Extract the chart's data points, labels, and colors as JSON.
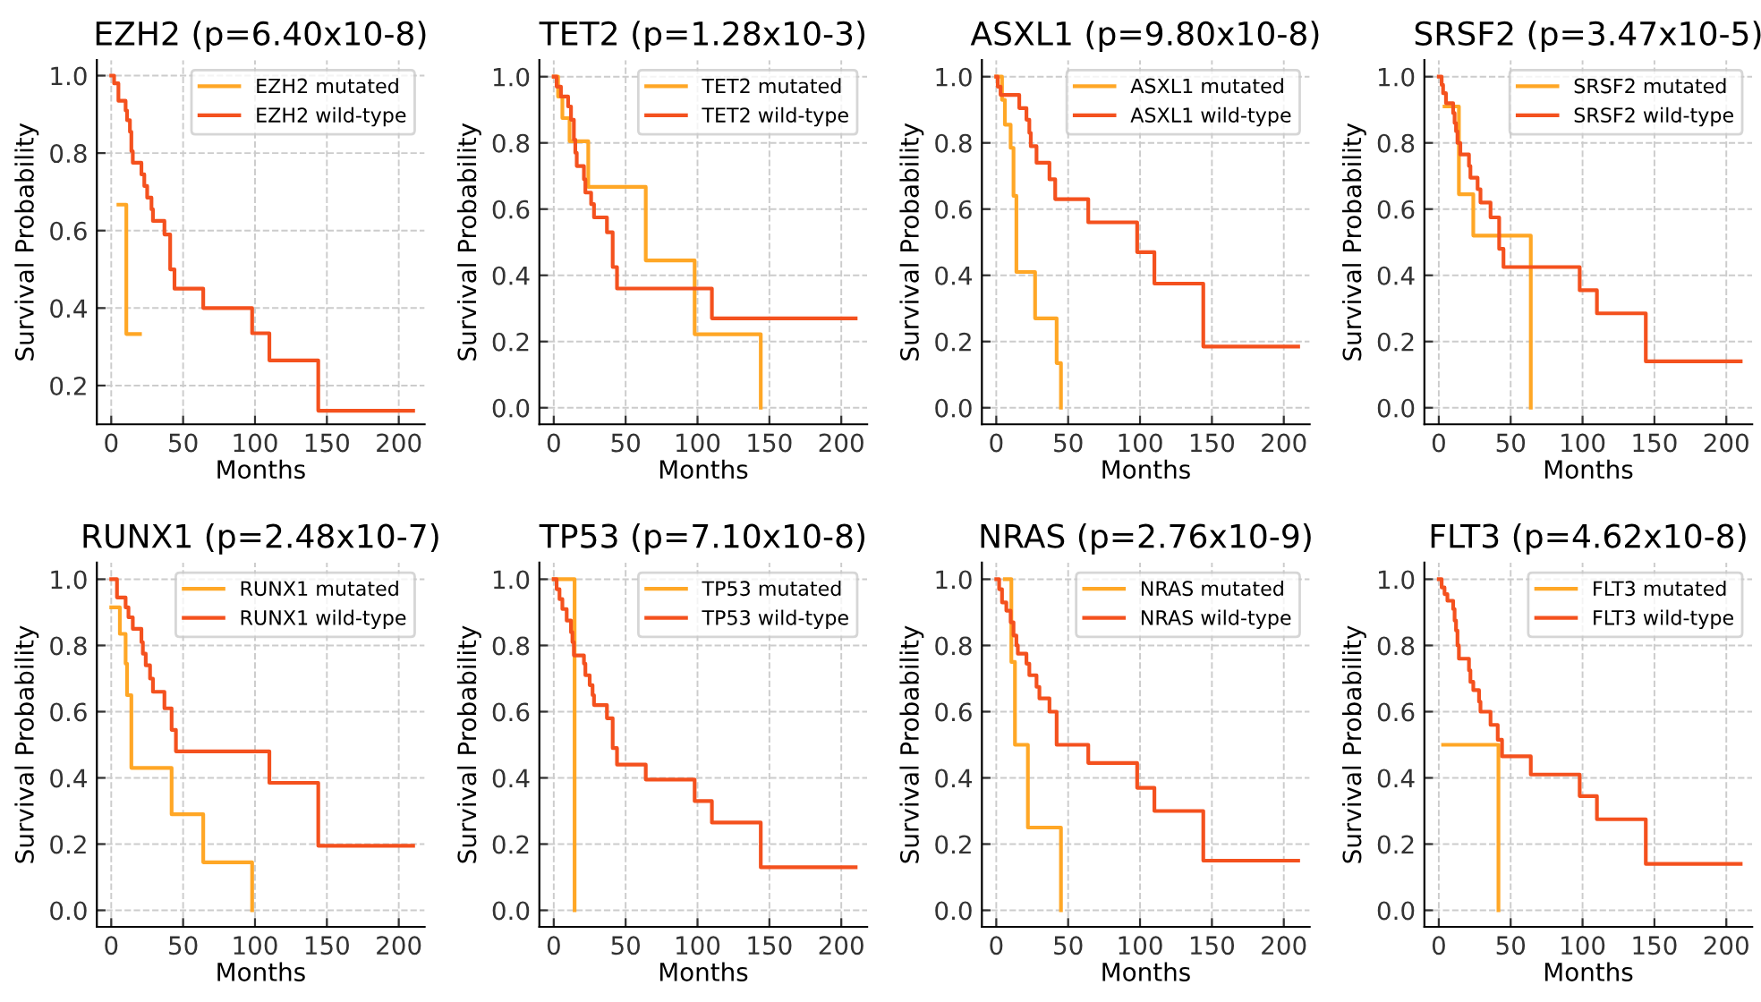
{
  "chart_data": [
    {
      "type": "step",
      "title": "EZH2 (p=6.40x10-8)",
      "xlabel": "Months",
      "ylabel": "Survival Probability",
      "xlim": [
        -10,
        218
      ],
      "ylim": [
        0.1,
        1.04
      ],
      "xticks": [
        0,
        50,
        100,
        150,
        200
      ],
      "yticks": [
        {
          "value": 0.2,
          "label": "0.2"
        },
        {
          "value": 0.4,
          "label": "0.4"
        },
        {
          "value": 0.6,
          "label": "0.6"
        },
        {
          "value": 0.8,
          "label": "0.8"
        },
        {
          "value": 1.0,
          "label": "1.0"
        }
      ],
      "grid": true,
      "legend": "top right",
      "line_style": "solid",
      "marker": "none",
      "series": [
        {
          "name": "EZH2 mutated",
          "color": "#ffa726",
          "x": [
            5,
            10.5,
            20
          ],
          "values": [
            0.667,
            0.333,
            0.333
          ]
        },
        {
          "name": "EZH2 wild-type",
          "color": "#f4511e",
          "x": [
            0,
            2,
            5,
            10,
            11,
            13,
            14,
            15,
            21,
            23,
            25,
            28,
            29,
            37,
            41,
            44,
            64,
            98,
            110,
            144,
            210
          ],
          "values": [
            1.0,
            0.98,
            0.935,
            0.91,
            0.885,
            0.855,
            0.805,
            0.775,
            0.745,
            0.715,
            0.685,
            0.655,
            0.625,
            0.59,
            0.5,
            0.45,
            0.4,
            0.335,
            0.265,
            0.135,
            0.135
          ]
        }
      ]
    },
    {
      "type": "step",
      "title": "TET2 (p=1.28x10-3)",
      "xlabel": "Months",
      "ylabel": "Survival Probability",
      "xlim": [
        -10,
        218
      ],
      "ylim": [
        -0.05,
        1.05
      ],
      "xticks": [
        0,
        50,
        100,
        150,
        200
      ],
      "yticks": [
        {
          "value": 0.0,
          "label": "0.0"
        },
        {
          "value": 0.2,
          "label": "0.2"
        },
        {
          "value": 0.4,
          "label": "0.4"
        },
        {
          "value": 0.6,
          "label": "0.6"
        },
        {
          "value": 0.8,
          "label": "0.8"
        },
        {
          "value": 1.0,
          "label": "1.0"
        }
      ],
      "grid": true,
      "legend": "top right",
      "line_style": "solid",
      "marker": "none",
      "series": [
        {
          "name": "TET2 mutated",
          "color": "#ffa726",
          "x": [
            0,
            3,
            6,
            11,
            24,
            64,
            98,
            144
          ],
          "values": [
            1.0,
            0.94,
            0.875,
            0.805,
            0.667,
            0.445,
            0.222,
            0.0
          ]
        },
        {
          "name": "TET2 wild-type",
          "color": "#f4511e",
          "x": [
            0,
            2,
            5,
            10,
            12,
            14,
            15,
            16,
            21,
            22,
            26,
            28,
            37,
            41,
            44,
            110,
            210
          ],
          "values": [
            1.0,
            0.97,
            0.94,
            0.91,
            0.87,
            0.81,
            0.77,
            0.73,
            0.69,
            0.65,
            0.615,
            0.575,
            0.53,
            0.425,
            0.36,
            0.27,
            0.27
          ]
        }
      ]
    },
    {
      "type": "step",
      "title": "ASXL1 (p=9.80x10-8)",
      "xlabel": "Months",
      "ylabel": "Survival Probability",
      "xlim": [
        -10,
        218
      ],
      "ylim": [
        -0.05,
        1.05
      ],
      "xticks": [
        0,
        50,
        100,
        150,
        200
      ],
      "yticks": [
        {
          "value": 0.0,
          "label": "0.0"
        },
        {
          "value": 0.2,
          "label": "0.2"
        },
        {
          "value": 0.4,
          "label": "0.4"
        },
        {
          "value": 0.6,
          "label": "0.6"
        },
        {
          "value": 0.8,
          "label": "0.8"
        },
        {
          "value": 1.0,
          "label": "1.0"
        }
      ],
      "grid": true,
      "legend": "top right",
      "line_style": "solid",
      "marker": "none",
      "series": [
        {
          "name": "ASXL1 mutated",
          "color": "#ffa726",
          "x": [
            0,
            4,
            6,
            10,
            12,
            14,
            27,
            42,
            45
          ],
          "values": [
            1.0,
            0.93,
            0.855,
            0.785,
            0.64,
            0.41,
            0.27,
            0.135,
            0.0
          ]
        },
        {
          "name": "ASXL1 wild-type",
          "color": "#f4511e",
          "x": [
            0,
            1,
            3,
            16,
            21,
            23,
            24,
            28,
            37,
            41,
            64,
            98,
            110,
            144,
            210
          ],
          "values": [
            1.0,
            0.97,
            0.945,
            0.905,
            0.87,
            0.83,
            0.79,
            0.74,
            0.69,
            0.63,
            0.56,
            0.47,
            0.375,
            0.185,
            0.185
          ]
        }
      ]
    },
    {
      "type": "step",
      "title": "SRSF2 (p=3.47x10-5)",
      "xlabel": "Months",
      "ylabel": "Survival Probability",
      "xlim": [
        -10,
        218
      ],
      "ylim": [
        -0.05,
        1.05
      ],
      "xticks": [
        0,
        50,
        100,
        150,
        200
      ],
      "yticks": [
        {
          "value": 0.0,
          "label": "0.0"
        },
        {
          "value": 0.2,
          "label": "0.2"
        },
        {
          "value": 0.4,
          "label": "0.4"
        },
        {
          "value": 0.6,
          "label": "0.6"
        },
        {
          "value": 0.8,
          "label": "0.8"
        },
        {
          "value": 1.0,
          "label": "1.0"
        }
      ],
      "grid": true,
      "legend": "top right",
      "line_style": "solid",
      "marker": "none",
      "series": [
        {
          "name": "SRSF2 mutated",
          "color": "#ffa726",
          "x": [
            4,
            14,
            24,
            64
          ],
          "values": [
            0.91,
            0.645,
            0.52,
            0.0
          ]
        },
        {
          "name": "SRSF2 wild-type",
          "color": "#f4511e",
          "x": [
            0,
            2,
            3,
            5,
            10,
            11,
            12,
            13,
            15,
            21,
            22,
            27,
            29,
            36,
            42,
            45,
            98,
            110,
            144,
            210
          ],
          "values": [
            1.0,
            0.975,
            0.95,
            0.92,
            0.89,
            0.86,
            0.835,
            0.8,
            0.765,
            0.73,
            0.695,
            0.66,
            0.62,
            0.575,
            0.48,
            0.425,
            0.355,
            0.285,
            0.14,
            0.14
          ]
        }
      ]
    },
    {
      "type": "step",
      "title": "RUNX1 (p=2.48x10-7)",
      "xlabel": "Months",
      "ylabel": "Survival Probability",
      "xlim": [
        -10,
        218
      ],
      "ylim": [
        -0.05,
        1.05
      ],
      "xticks": [
        0,
        50,
        100,
        150,
        200
      ],
      "yticks": [
        {
          "value": 0.0,
          "label": "0.0"
        },
        {
          "value": 0.2,
          "label": "0.2"
        },
        {
          "value": 0.4,
          "label": "0.4"
        },
        {
          "value": 0.6,
          "label": "0.6"
        },
        {
          "value": 0.8,
          "label": "0.8"
        },
        {
          "value": 1.0,
          "label": "1.0"
        }
      ],
      "grid": true,
      "legend": "top right",
      "line_style": "solid",
      "marker": "none",
      "series": [
        {
          "name": "RUNX1 mutated",
          "color": "#ffa726",
          "x": [
            0,
            6,
            10,
            11,
            14,
            42,
            64,
            98
          ],
          "values": [
            0.915,
            0.835,
            0.745,
            0.65,
            0.43,
            0.29,
            0.145,
            0.0
          ]
        },
        {
          "name": "RUNX1 wild-type",
          "color": "#f4511e",
          "x": [
            0,
            4,
            10,
            12,
            15,
            21,
            22,
            24,
            27,
            29,
            37,
            42,
            45,
            110,
            144,
            210
          ],
          "values": [
            1.0,
            0.945,
            0.915,
            0.885,
            0.85,
            0.81,
            0.775,
            0.74,
            0.7,
            0.66,
            0.61,
            0.545,
            0.48,
            0.385,
            0.195,
            0.195
          ]
        }
      ]
    },
    {
      "type": "step",
      "title": "TP53 (p=7.10x10-8)",
      "xlabel": "Months",
      "ylabel": "Survival Probability",
      "xlim": [
        -10,
        218
      ],
      "ylim": [
        -0.05,
        1.05
      ],
      "xticks": [
        0,
        50,
        100,
        150,
        200
      ],
      "yticks": [
        {
          "value": 0.0,
          "label": "0.0"
        },
        {
          "value": 0.2,
          "label": "0.2"
        },
        {
          "value": 0.4,
          "label": "0.4"
        },
        {
          "value": 0.6,
          "label": "0.6"
        },
        {
          "value": 0.8,
          "label": "0.8"
        },
        {
          "value": 1.0,
          "label": "1.0"
        }
      ],
      "grid": true,
      "legend": "top right",
      "line_style": "solid",
      "marker": "none",
      "series": [
        {
          "name": "TP53 mutated",
          "color": "#ffa726",
          "x": [
            0,
            14.5
          ],
          "values": [
            1.0,
            0.0
          ]
        },
        {
          "name": "TP53 wild-type",
          "color": "#f4511e",
          "x": [
            0,
            2,
            4,
            6,
            9,
            12,
            13,
            14,
            21,
            22,
            25,
            27,
            28,
            37,
            41,
            44,
            64,
            98,
            110,
            144,
            210
          ],
          "values": [
            1.0,
            0.97,
            0.94,
            0.91,
            0.875,
            0.84,
            0.81,
            0.77,
            0.745,
            0.71,
            0.68,
            0.65,
            0.62,
            0.58,
            0.49,
            0.44,
            0.395,
            0.33,
            0.265,
            0.13,
            0.13
          ]
        }
      ]
    },
    {
      "type": "step",
      "title": "NRAS (p=2.76x10-9)",
      "xlabel": "Months",
      "ylabel": "Survival Probability",
      "xlim": [
        -10,
        218
      ],
      "ylim": [
        -0.05,
        1.05
      ],
      "xticks": [
        0,
        50,
        100,
        150,
        200
      ],
      "yticks": [
        {
          "value": 0.0,
          "label": "0.0"
        },
        {
          "value": 0.2,
          "label": "0.2"
        },
        {
          "value": 0.4,
          "label": "0.4"
        },
        {
          "value": 0.6,
          "label": "0.6"
        },
        {
          "value": 0.8,
          "label": "0.8"
        },
        {
          "value": 1.0,
          "label": "1.0"
        }
      ],
      "grid": true,
      "legend": "top right",
      "line_style": "solid",
      "marker": "none",
      "series": [
        {
          "name": "NRAS mutated",
          "color": "#ffa726",
          "x": [
            6,
            10.5,
            13,
            22,
            45
          ],
          "values": [
            1.0,
            0.75,
            0.5,
            0.25,
            0.0
          ]
        },
        {
          "name": "NRAS wild-type",
          "color": "#f4511e",
          "x": [
            0,
            2,
            4,
            7,
            10,
            12,
            14,
            15,
            21,
            23,
            28,
            30,
            37,
            42,
            64,
            98,
            110,
            144,
            210
          ],
          "values": [
            1.0,
            0.97,
            0.93,
            0.905,
            0.87,
            0.83,
            0.8,
            0.775,
            0.745,
            0.71,
            0.675,
            0.64,
            0.6,
            0.5,
            0.445,
            0.37,
            0.3,
            0.15,
            0.15
          ]
        }
      ]
    },
    {
      "type": "step",
      "title": "FLT3 (p=4.62x10-8)",
      "xlabel": "Months",
      "ylabel": "Survival Probability",
      "xlim": [
        -10,
        218
      ],
      "ylim": [
        -0.05,
        1.05
      ],
      "xticks": [
        0,
        50,
        100,
        150,
        200
      ],
      "yticks": [
        {
          "value": 0.0,
          "label": "0.0"
        },
        {
          "value": 0.2,
          "label": "0.2"
        },
        {
          "value": 0.4,
          "label": "0.4"
        },
        {
          "value": 0.6,
          "label": "0.6"
        },
        {
          "value": 0.8,
          "label": "0.8"
        },
        {
          "value": 1.0,
          "label": "1.0"
        }
      ],
      "grid": true,
      "legend": "top right",
      "line_style": "solid",
      "marker": "none",
      "series": [
        {
          "name": "FLT3 mutated",
          "color": "#ffa726",
          "x": [
            3,
            41.5
          ],
          "values": [
            0.5,
            0.0
          ]
        },
        {
          "name": "FLT3 wild-type",
          "color": "#f4511e",
          "x": [
            0,
            2,
            4,
            6,
            10,
            11,
            12,
            13,
            14,
            21,
            22,
            24,
            28,
            29,
            36,
            41,
            44,
            64,
            98,
            110,
            144,
            210
          ],
          "values": [
            1.0,
            0.975,
            0.955,
            0.935,
            0.91,
            0.875,
            0.845,
            0.8,
            0.76,
            0.725,
            0.69,
            0.665,
            0.63,
            0.6,
            0.56,
            0.515,
            0.465,
            0.41,
            0.345,
            0.275,
            0.14,
            0.14
          ]
        }
      ]
    }
  ]
}
